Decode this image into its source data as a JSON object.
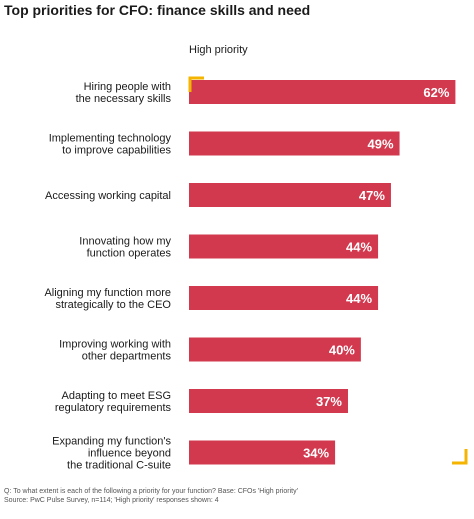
{
  "title": "Top priorities for CFO: finance skills and need",
  "legend": "High priority",
  "colors": {
    "bar": "#d2384e",
    "corner_accent": "#f5b400",
    "value_text": "#ffffff"
  },
  "chart_data": {
    "type": "bar",
    "orientation": "horizontal",
    "title": "Top priorities for CFO: finance skills and need",
    "series": [
      {
        "name": "High priority",
        "values": [
          62,
          49,
          47,
          44,
          44,
          40,
          37,
          34
        ]
      }
    ],
    "categories": [
      [
        "Hiring people with",
        "the necessary skills"
      ],
      [
        "Implementing technology",
        "to improve capabilities"
      ],
      [
        "Accessing working capital"
      ],
      [
        "Innovating how my",
        "function operates"
      ],
      [
        "Aligning my function more",
        "strategically to the CEO"
      ],
      [
        "Improving working with",
        "other departments"
      ],
      [
        "Adapting to meet ESG",
        "regulatory requirements"
      ],
      [
        "Expanding my function's",
        "influence beyond",
        "the traditional C-suite"
      ]
    ],
    "value_labels": [
      "62%",
      "49%",
      "47%",
      "44%",
      "44%",
      "40%",
      "37%",
      "34%"
    ],
    "xlim": [
      0,
      64
    ],
    "grid": false,
    "legend_position": "top"
  },
  "footnote": [
    "Q: To what extent is each of the following a priority for your function? Base: CFOs 'High priority'",
    "Source: PwC Pulse Survey, n=114; 'High priority' responses shown: 4"
  ]
}
